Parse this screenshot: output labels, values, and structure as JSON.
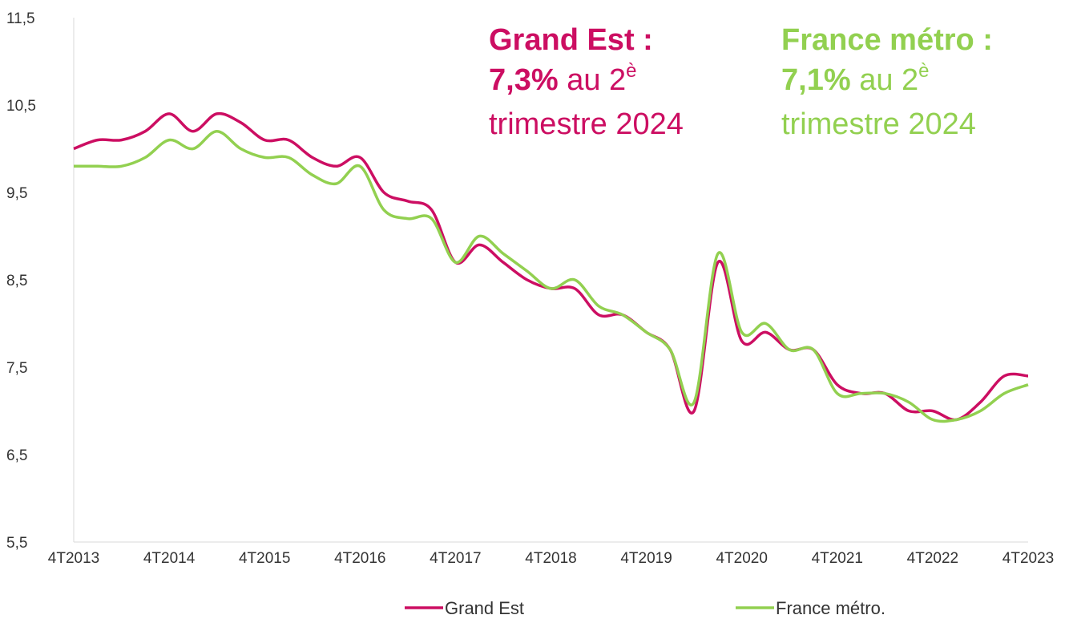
{
  "chart_data": {
    "type": "line",
    "categories": [
      "4T2013",
      null,
      null,
      null,
      "4T2014",
      null,
      null,
      null,
      "4T2015",
      null,
      null,
      null,
      "4T2016",
      null,
      null,
      null,
      "4T2017",
      null,
      null,
      null,
      "4T2018",
      null,
      null,
      null,
      "4T2019",
      null,
      null,
      null,
      "4T2020",
      null,
      null,
      null,
      "4T2021",
      null,
      null,
      null,
      "4T2022",
      null,
      null,
      null,
      "4T2023"
    ],
    "series": [
      {
        "name": "Grand Est",
        "color": "#cc0e62",
        "values": [
          10.0,
          10.1,
          10.1,
          10.2,
          10.4,
          10.2,
          10.4,
          10.3,
          10.1,
          10.1,
          9.9,
          9.8,
          9.9,
          9.5,
          9.4,
          9.3,
          8.7,
          8.9,
          8.7,
          8.5,
          8.4,
          8.4,
          8.1,
          8.1,
          7.9,
          7.7,
          7.0,
          8.7,
          7.8,
          7.9,
          7.7,
          7.7,
          7.3,
          7.2,
          7.2,
          7.0,
          7.0,
          6.9,
          7.1,
          7.4,
          7.4
        ]
      },
      {
        "name": "France métro.",
        "color": "#92d050",
        "values": [
          9.8,
          9.8,
          9.8,
          9.9,
          10.1,
          10.0,
          10.2,
          10.0,
          9.9,
          9.9,
          9.7,
          9.6,
          9.8,
          9.3,
          9.2,
          9.2,
          8.7,
          9.0,
          8.8,
          8.6,
          8.4,
          8.5,
          8.2,
          8.1,
          7.9,
          7.7,
          7.1,
          8.8,
          7.9,
          8.0,
          7.7,
          7.7,
          7.2,
          7.2,
          7.2,
          7.1,
          6.9,
          6.9,
          7.0,
          7.2,
          7.3
        ]
      }
    ],
    "ylim": [
      5.5,
      11.5
    ],
    "yticks": [
      {
        "value": 5.5,
        "label": "5,5"
      },
      {
        "value": 6.5,
        "label": "6,5"
      },
      {
        "value": 7.5,
        "label": "7,5"
      },
      {
        "value": 8.5,
        "label": "8,5"
      },
      {
        "value": 9.5,
        "label": "9,5"
      },
      {
        "value": 10.5,
        "label": "10,5"
      },
      {
        "value": 11.5,
        "label": "11,5"
      }
    ],
    "grid": false,
    "legend": "bottom",
    "annotations": [
      {
        "title": "Grand Est :",
        "value": "7,3%",
        "text": "au 2",
        "sup": "è",
        "text2": "trimestre 2024",
        "color": "#cc0e62"
      },
      {
        "title": "France métro :",
        "value": "7,1%",
        "text": "au 2",
        "sup": "è",
        "text2": "trimestre 2024",
        "color": "#92d050"
      }
    ]
  }
}
